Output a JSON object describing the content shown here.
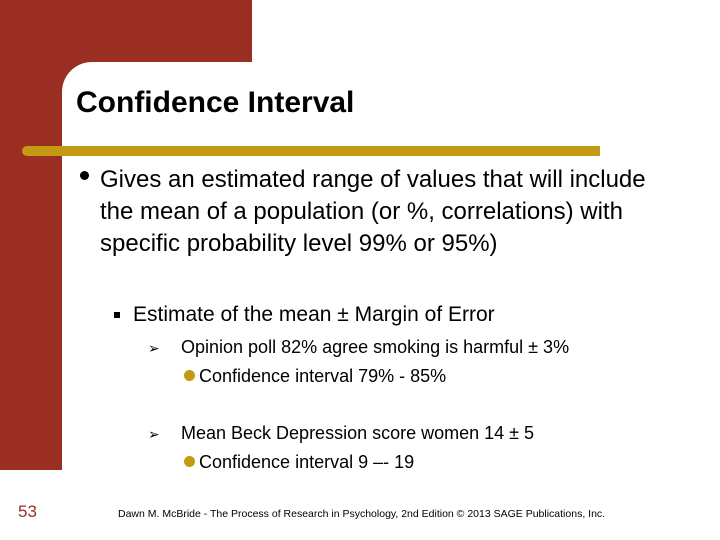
{
  "slide": {
    "title": "Confidence Interval",
    "bullet_main": "Gives an estimated range of values that will include the mean of  a population (or %, correlations) with specific probability level 99% or 95%)",
    "bullet_sub": "Estimate of the mean  ± Margin of Error",
    "examples": [
      {
        "arrow": "➢",
        "text": "Opinion poll 82% agree smoking is harmful ± 3%",
        "detail": "Confidence interval  79% - 85%"
      },
      {
        "arrow": "➢",
        "text": "Mean Beck Depression score women  14 ± 5",
        "detail": "Confidence interval 9 –-  19"
      }
    ],
    "slide_number": "53",
    "footer": "Dawn M. McBride - The Process of Research in Psychology, 2nd Edition © 2013 SAGE Publications, Inc."
  },
  "colors": {
    "accent_red": "#9a2e22",
    "accent_gold": "#c49a12"
  }
}
